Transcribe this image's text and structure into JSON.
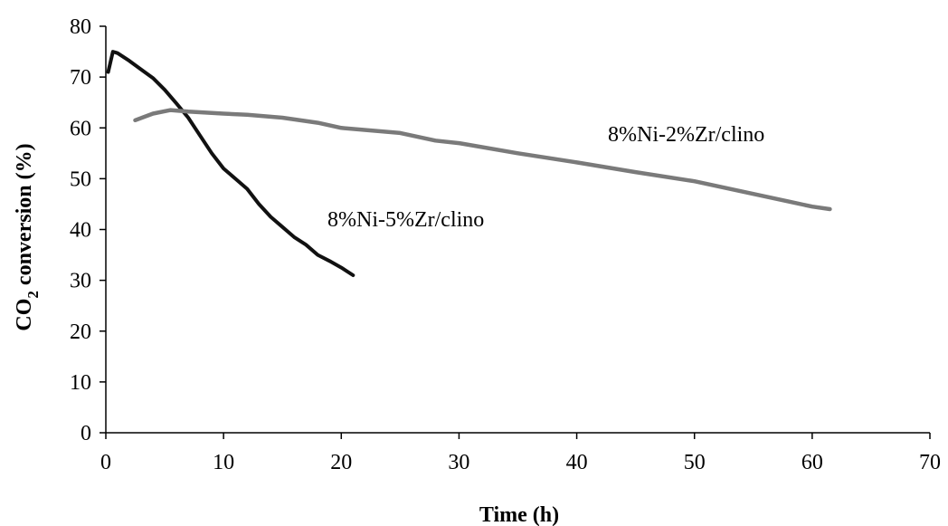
{
  "chart_data": {
    "type": "line",
    "title": "",
    "xlabel": "Time (h)",
    "ylabel_main": "CO",
    "ylabel_sub": "2",
    "ylabel_rest": " conversion (%)",
    "xlim": [
      0,
      70
    ],
    "ylim": [
      0,
      80
    ],
    "xticks": [
      0,
      10,
      20,
      30,
      40,
      50,
      60,
      70
    ],
    "yticks": [
      0,
      10,
      20,
      30,
      40,
      50,
      60,
      70,
      80
    ],
    "grid": false,
    "series": [
      {
        "name": "8%Ni-5%Zr/clino",
        "color": "#111111",
        "x": [
          0.2,
          0.6,
          1.0,
          2,
          3,
          4,
          5,
          6,
          7,
          8,
          9,
          10,
          11,
          12,
          13,
          14,
          15,
          16,
          17,
          18,
          19,
          20,
          21
        ],
        "y": [
          71,
          75,
          74.7,
          73.2,
          71.5,
          69.8,
          67.5,
          64.8,
          62,
          58.5,
          55,
          52,
          50,
          48,
          45,
          42.5,
          40.5,
          38.5,
          37,
          35,
          33.8,
          32.5,
          31
        ]
      },
      {
        "name": "8%Ni-2%Zr/clino",
        "color": "#7a7a7a",
        "x": [
          2.5,
          4,
          5.5,
          7,
          10,
          12,
          15,
          18,
          20,
          25,
          28,
          30,
          35,
          40,
          45,
          50,
          55,
          58,
          60,
          61.5
        ],
        "y": [
          61.5,
          62.8,
          63.5,
          63.2,
          62.8,
          62.6,
          62,
          61,
          60,
          59,
          57.5,
          57,
          55,
          53.2,
          51.3,
          49.5,
          47,
          45.5,
          44.5,
          44
        ]
      }
    ]
  }
}
